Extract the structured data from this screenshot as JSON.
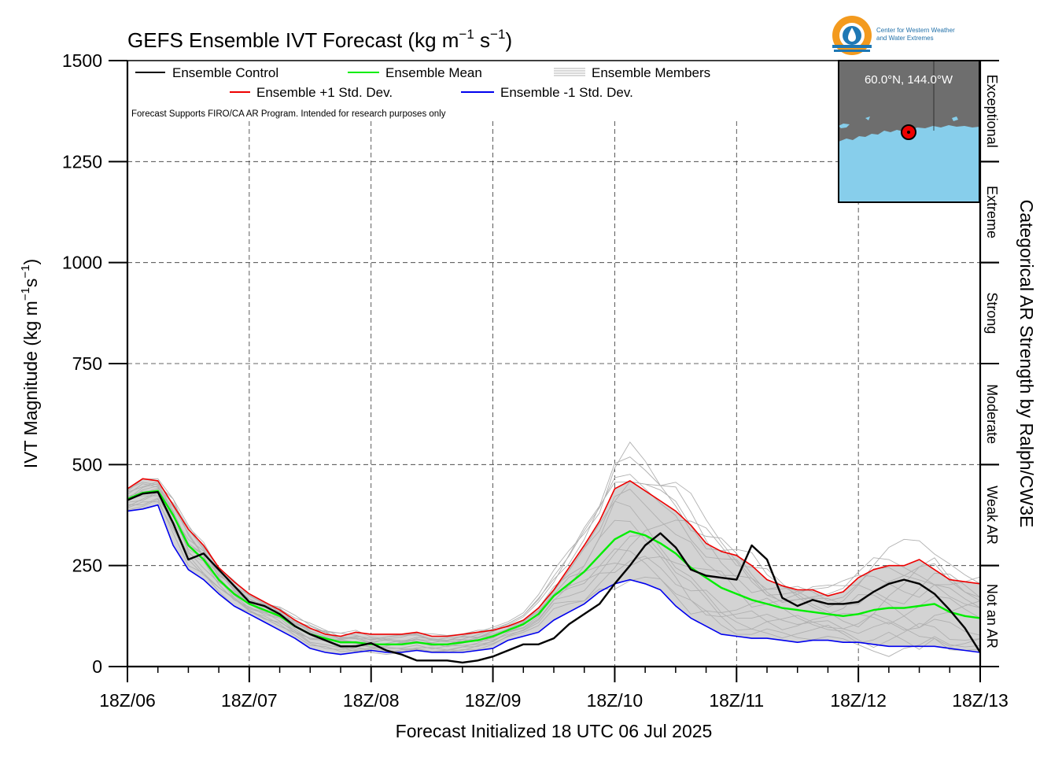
{
  "chart_data": {
    "type": "line",
    "title_main": "GEFS Ensemble IVT Forecast (kg m",
    "title_exp1": "−1",
    "title_mid": " s",
    "title_exp2": "−1",
    "title_end": ")",
    "ylabel_main": "IVT Magnitude (kg m",
    "ylabel_exp1": "−1",
    "ylabel_mid": "s",
    "ylabel_exp2": "−1",
    "ylabel_end": ")",
    "xlabel": "Forecast Initialized 18 UTC 06 Jul 2025",
    "right_label": "Categorical AR Strength by Ralph/CW3E",
    "ylim": [
      0,
      1500
    ],
    "xlim": [
      0,
      168
    ],
    "grid": true,
    "x_ticks": [
      {
        "x": 0,
        "label": "18Z/06"
      },
      {
        "x": 24,
        "label": "18Z/07"
      },
      {
        "x": 48,
        "label": "18Z/08"
      },
      {
        "x": 72,
        "label": "18Z/09"
      },
      {
        "x": 96,
        "label": "18Z/10"
      },
      {
        "x": 120,
        "label": "18Z/11"
      },
      {
        "x": 144,
        "label": "18Z/12"
      },
      {
        "x": 168,
        "label": "18Z/13"
      }
    ],
    "y_ticks": [
      {
        "y": 0,
        "label": "0"
      },
      {
        "y": 250,
        "label": "250"
      },
      {
        "y": 500,
        "label": "500"
      },
      {
        "y": 750,
        "label": "750"
      },
      {
        "y": 1000,
        "label": "1000"
      },
      {
        "y": 1250,
        "label": "1250"
      },
      {
        "y": 1500,
        "label": "1500"
      }
    ],
    "categories": [
      {
        "label": "Not an AR",
        "ymin": 0,
        "ymax": 250
      },
      {
        "label": "Weak AR",
        "ymin": 250,
        "ymax": 500
      },
      {
        "label": "Moderate",
        "ymin": 500,
        "ymax": 750
      },
      {
        "label": "Strong",
        "ymin": 750,
        "ymax": 1000
      },
      {
        "label": "Extreme",
        "ymin": 1000,
        "ymax": 1250
      },
      {
        "label": "Exceptional",
        "ymin": 1250,
        "ymax": 1500
      }
    ],
    "legend": {
      "control": "Ensemble Control",
      "mean": "Ensemble Mean",
      "members": "Ensemble Members",
      "plus_std": "Ensemble +1 Std. Dev.",
      "minus_std": "Ensemble -1 Std. Dev."
    },
    "note": "Forecast Supports FIRO/CA AR Program. Intended for research purposes only",
    "inset_location": "60.0°N, 144.0°W",
    "logo_text_1": "Center for Western Weather",
    "logo_text_2": "and Water Extremes",
    "colors": {
      "control": "#000000",
      "mean": "#00ee00",
      "plus_std": "#ee0000",
      "minus_std": "#0000ee",
      "members": "#b0b0b0",
      "spread": "#d3d3d3",
      "ocean": "#87ceeb",
      "land": "#6e6e6e"
    },
    "x": [
      0,
      3,
      6,
      9,
      12,
      15,
      18,
      21,
      24,
      27,
      30,
      33,
      36,
      39,
      42,
      45,
      48,
      51,
      54,
      57,
      60,
      63,
      66,
      69,
      72,
      75,
      78,
      81,
      84,
      87,
      90,
      93,
      96,
      99,
      102,
      105,
      108,
      111,
      114,
      117,
      120,
      123,
      126,
      129,
      132,
      135,
      138,
      141,
      144,
      147,
      150,
      153,
      156,
      159,
      162,
      165,
      168
    ],
    "series": [
      {
        "name": "Ensemble +1 Std. Dev.",
        "key": "plus_std",
        "values": [
          440,
          465,
          460,
          400,
          340,
          300,
          245,
          210,
          180,
          160,
          140,
          115,
          95,
          80,
          75,
          85,
          80,
          80,
          80,
          85,
          75,
          75,
          80,
          85,
          90,
          100,
          115,
          145,
          190,
          245,
          300,
          360,
          440,
          460,
          435,
          410,
          385,
          350,
          305,
          285,
          275,
          250,
          215,
          200,
          190,
          190,
          175,
          185,
          220,
          240,
          250,
          250,
          265,
          240,
          215,
          210,
          205
        ]
      },
      {
        "name": "Ensemble Mean",
        "key": "mean",
        "values": [
          415,
          430,
          435,
          375,
          300,
          265,
          215,
          180,
          155,
          140,
          125,
          100,
          80,
          70,
          60,
          60,
          55,
          55,
          55,
          60,
          55,
          55,
          60,
          65,
          75,
          90,
          105,
          130,
          175,
          205,
          235,
          275,
          315,
          335,
          325,
          305,
          280,
          245,
          220,
          195,
          180,
          165,
          155,
          145,
          140,
          135,
          130,
          125,
          130,
          140,
          145,
          145,
          150,
          155,
          135,
          125,
          120
        ]
      },
      {
        "name": "Ensemble -1 Std. Dev.",
        "key": "minus_std",
        "values": [
          385,
          390,
          400,
          300,
          240,
          215,
          180,
          150,
          130,
          110,
          90,
          70,
          45,
          35,
          30,
          35,
          40,
          35,
          35,
          40,
          35,
          35,
          35,
          40,
          45,
          65,
          75,
          85,
          115,
          135,
          155,
          185,
          205,
          215,
          205,
          190,
          150,
          120,
          100,
          80,
          75,
          70,
          70,
          65,
          60,
          65,
          65,
          60,
          60,
          55,
          50,
          50,
          50,
          50,
          45,
          40,
          35
        ]
      },
      {
        "name": "Ensemble Control",
        "key": "control",
        "values": [
          412,
          428,
          432,
          355,
          265,
          280,
          240,
          200,
          160,
          150,
          130,
          100,
          80,
          65,
          50,
          50,
          58,
          40,
          30,
          15,
          15,
          15,
          10,
          15,
          25,
          40,
          55,
          55,
          70,
          105,
          130,
          155,
          205,
          250,
          300,
          330,
          295,
          240,
          225,
          220,
          215,
          300,
          265,
          170,
          150,
          165,
          155,
          155,
          160,
          185,
          205,
          215,
          205,
          180,
          140,
          95,
          35
        ]
      }
    ],
    "members_spread": [
      [
        0.0,
        0.35,
        0.6,
        0.2,
        0.1,
        0.3,
        0.55,
        0.4,
        0.15,
        0.25,
        0.45,
        0.7,
        0.3,
        0.2,
        0.5,
        0.35,
        0.1,
        0.6,
        0.4,
        0.3,
        0.2,
        0.5,
        0.65,
        0.35,
        0.25,
        0.15,
        0.45,
        0.55,
        0.3,
        0.6,
        0.8,
        0.7,
        0.9,
        0.85,
        0.65,
        0.5,
        0.4,
        0.55,
        0.35,
        0.3,
        0.45,
        0.6,
        0.3,
        0.25,
        0.4,
        0.55,
        0.7,
        0.45,
        0.3,
        0.5,
        0.65,
        0.8,
        0.6,
        0.5,
        0.45,
        0.35,
        0.3
      ],
      [
        -0.3,
        -0.5,
        -0.2,
        -0.6,
        -0.4,
        -0.1,
        -0.35,
        -0.5,
        -0.3,
        -0.45,
        -0.2,
        -0.55,
        -0.4,
        -0.3,
        -0.6,
        -0.25,
        -0.35,
        -0.5,
        -0.4,
        -0.3,
        -0.55,
        -0.2,
        -0.35,
        -0.45,
        -0.6,
        -0.3,
        -0.5,
        -0.4,
        -0.25,
        -0.55,
        -0.65,
        -0.5,
        -0.7,
        -0.6,
        -0.45,
        -0.55,
        -0.65,
        -0.5,
        -0.3,
        -0.4,
        -0.6,
        -0.5,
        -0.35,
        -0.45,
        -0.55,
        -0.4,
        -0.3,
        -0.5,
        -0.6,
        -0.45,
        -0.35,
        -0.55,
        -0.5,
        -0.4,
        -0.3,
        -0.45,
        -0.5
      ],
      [
        0.6,
        0.4,
        0.75,
        0.5,
        0.8,
        0.6,
        0.3,
        0.7,
        0.5,
        0.4,
        0.65,
        0.3,
        0.55,
        0.7,
        0.4,
        0.6,
        0.75,
        0.45,
        0.3,
        0.55,
        0.7,
        0.5,
        0.35,
        0.6,
        0.8,
        0.95,
        1.1,
        1.2,
        1.3,
        1.25,
        1.4,
        1.35,
        1.3,
        1.15,
        1.0,
        0.9,
        0.8,
        0.6,
        0.5,
        0.7,
        0.85,
        0.6,
        0.5,
        0.7,
        0.9,
        0.8,
        0.6,
        0.75,
        0.95,
        1.1,
        1.0,
        0.8,
        0.9,
        1.05,
        0.9,
        0.7,
        0.6
      ],
      [
        -0.8,
        -0.6,
        -0.9,
        -0.7,
        -0.5,
        -0.8,
        -0.6,
        -0.4,
        -0.7,
        -0.9,
        -0.6,
        -0.5,
        -0.8,
        -0.7,
        -0.6,
        -0.9,
        -0.5,
        -0.7,
        -0.8,
        -0.6,
        -0.4,
        -0.7,
        -0.9,
        -0.6,
        -0.8,
        -0.9,
        -1.0,
        -0.95,
        -0.85,
        -0.9,
        -1.0,
        -0.95,
        -1.05,
        -1.0,
        -0.9,
        -0.8,
        -0.85,
        -0.7,
        -0.8,
        -0.9,
        -1.0,
        -0.95,
        -0.85,
        -0.9,
        -1.05,
        -1.1,
        -1.0,
        -0.9,
        -0.95,
        -1.1,
        -1.2,
        -1.0,
        -0.9,
        -0.85,
        -0.95,
        -0.9,
        -0.8
      ],
      [
        0.2,
        0.1,
        0.0,
        0.4,
        0.6,
        0.2,
        -0.1,
        0.1,
        0.3,
        0.6,
        0.8,
        0.5,
        0.2,
        0.0,
        0.3,
        0.5,
        0.2,
        -0.1,
        0.1,
        0.3,
        0.5,
        0.8,
        0.6,
        0.3,
        0.1,
        -0.2,
        -0.4,
        -0.2,
        0.1,
        0.3,
        0.0,
        -0.3,
        -0.5,
        -0.7,
        -0.5,
        -0.3,
        -0.2,
        0.0,
        0.2,
        0.4,
        0.1,
        -0.2,
        0.0,
        0.3,
        0.6,
        1.0,
        1.3,
        1.2,
        0.9,
        0.5,
        0.2,
        0.1,
        0.4,
        0.8,
        1.1,
        0.9,
        0.6
      ],
      [
        -0.1,
        0.2,
        0.4,
        0.1,
        -0.3,
        -0.5,
        -0.2,
        0.2,
        0.5,
        0.3,
        0.0,
        -0.3,
        -0.5,
        -0.2,
        0.1,
        -0.1,
        -0.4,
        -0.2,
        0.2,
        0.4,
        0.1,
        -0.3,
        -0.1,
        0.2,
        0.5,
        0.7,
        0.9,
        1.0,
        0.9,
        1.3,
        1.5,
        1.4,
        1.2,
        1.0,
        1.1,
        1.3,
        1.4,
        1.2,
        0.9,
        0.6,
        0.4,
        0.2,
        0.5,
        0.8,
        0.6,
        0.3,
        0.1,
        -0.2,
        -0.4,
        -0.1,
        0.3,
        0.6,
        0.9,
        1.2,
        1.0,
        0.7,
        0.5
      ],
      [
        0.9,
        0.7,
        0.5,
        0.8,
        1.0,
        0.7,
        0.9,
        1.1,
        0.8,
        0.6,
        0.9,
        1.2,
        0.9,
        0.7,
        1.0,
        1.2,
        0.9,
        0.6,
        0.8,
        1.0,
        1.3,
        1.1,
        0.9,
        1.1,
        0.7,
        0.5,
        0.3,
        0.2,
        0.0,
        -0.2,
        -0.4,
        -0.3,
        -0.2,
        -0.4,
        -0.6,
        -0.8,
        -0.9,
        -1.0,
        -0.8,
        -0.6,
        -0.7,
        -0.8,
        -0.6,
        -0.4,
        -0.2,
        -0.4,
        -0.6,
        -0.5,
        -0.3,
        -0.1,
        -0.3,
        -0.5,
        -0.7,
        -0.9,
        -1.0,
        -0.8,
        -0.6
      ],
      [
        -0.5,
        -0.8,
        -0.6,
        -0.3,
        0.0,
        0.3,
        0.6,
        0.3,
        0.0,
        -0.2,
        -0.5,
        -0.7,
        -0.4,
        -0.1,
        0.2,
        0.0,
        -0.3,
        0.1,
        0.4,
        0.1,
        -0.2,
        0.0,
        0.3,
        -0.1,
        -0.4,
        -0.6,
        -0.8,
        -0.7,
        -0.5,
        -0.8,
        -1.0,
        -0.8,
        -0.6,
        -0.3,
        0.1,
        0.4,
        0.7,
        1.0,
        1.2,
        1.0,
        0.7,
        0.9,
        1.2,
        0.9,
        0.5,
        0.2,
        0.0,
        0.3,
        0.6,
        0.4,
        0.1,
        -0.2,
        -0.5,
        -0.3,
        0.0,
        0.3,
        0.5
      ],
      [
        0.4,
        0.6,
        0.3,
        0.0,
        -0.2,
        0.1,
        0.4,
        0.6,
        0.9,
        0.7,
        0.4,
        0.2,
        0.5,
        0.8,
        1.0,
        0.7,
        0.5,
        0.8,
        1.1,
        0.9,
        0.6,
        0.4,
        0.7,
        0.9,
        1.0,
        1.2,
        1.4,
        1.6,
        1.7,
        1.5,
        1.3,
        1.2,
        1.5,
        1.8,
        1.6,
        1.3,
        1.0,
        0.8,
        1.0,
        1.2,
        1.0,
        0.7,
        0.4,
        0.2,
        0.4,
        0.6,
        0.9,
        1.1,
        1.3,
        1.4,
        1.2,
        1.0,
        0.7,
        0.5,
        0.8,
        1.0,
        1.2
      ],
      [
        -0.7,
        -0.4,
        -0.1,
        -0.4,
        -0.7,
        -0.9,
        -0.6,
        -0.3,
        -0.6,
        -0.8,
        -1.0,
        -0.7,
        -0.9,
        -1.1,
        -0.8,
        -0.5,
        -0.7,
        -0.9,
        -0.6,
        -0.8,
        -1.0,
        -0.8,
        -0.5,
        -0.7,
        -0.5,
        -0.3,
        -0.1,
        0.1,
        0.3,
        0.6,
        0.8,
        0.9,
        0.8,
        0.5,
        0.2,
        -0.1,
        -0.3,
        -0.2,
        -0.4,
        -0.6,
        -0.4,
        -0.1,
        0.2,
        0.0,
        -0.3,
        -0.5,
        -0.7,
        -0.6,
        -0.8,
        -1.0,
        -0.8,
        -0.6,
        -0.4,
        -0.6,
        -0.8,
        -0.7,
        -0.6
      ],
      [
        0.1,
        -0.2,
        -0.4,
        -0.1,
        0.3,
        0.5,
        0.2,
        -0.1,
        -0.4,
        -0.2,
        0.2,
        0.5,
        0.8,
        0.6,
        0.3,
        0.0,
        0.3,
        0.5,
        0.2,
        -0.1,
        0.2,
        0.5,
        0.3,
        0.0,
        -0.2,
        0.0,
        0.2,
        0.5,
        0.6,
        0.4,
        0.2,
        0.5,
        0.8,
        1.0,
        1.1,
        1.2,
        1.1,
        0.9,
        0.7,
        0.9,
        1.1,
        1.3,
        1.0,
        0.8,
        0.7,
        0.9,
        1.2,
        1.4,
        1.2,
        0.9,
        0.6,
        0.4,
        0.2,
        0.5,
        0.7,
        0.5,
        0.3
      ],
      [
        0.7,
        0.9,
        1.0,
        0.8,
        0.5,
        0.2,
        0.0,
        -0.3,
        -0.5,
        -0.3,
        -0.1,
        0.1,
        -0.1,
        -0.3,
        -0.5,
        -0.7,
        -0.5,
        -0.3,
        -0.5,
        -0.7,
        -0.9,
        -0.7,
        -0.5,
        -0.3,
        -0.1,
        0.2,
        0.4,
        0.3,
        0.1,
        -0.1,
        0.2,
        0.5,
        0.4,
        0.2,
        -0.1,
        -0.3,
        -0.5,
        -0.7,
        -0.9,
        -0.7,
        -0.5,
        -0.3,
        -0.6,
        -0.8,
        -0.6,
        -0.3,
        -0.1,
        0.1,
        0.0,
        -0.2,
        -0.4,
        -0.2,
        0.0,
        0.2,
        0.4,
        0.2,
        0.0
      ],
      [
        -0.2,
        0.0,
        0.2,
        0.6,
        0.9,
        1.0,
        0.8,
        0.5,
        0.3,
        0.5,
        0.7,
        0.9,
        1.1,
        0.9,
        0.6,
        0.4,
        0.6,
        0.8,
        1.0,
        0.8,
        0.5,
        0.3,
        0.1,
        0.3,
        0.6,
        0.9,
        1.1,
        1.3,
        1.1,
        0.9,
        1.1,
        1.4,
        1.6,
        1.5,
        1.4,
        1.3,
        1.5,
        1.6,
        1.4,
        1.1,
        0.8,
        0.5,
        0.3,
        0.5,
        0.7,
        0.5,
        0.3,
        0.6,
        0.9,
        1.2,
        1.5,
        1.7,
        1.5,
        1.3,
        1.4,
        1.2,
        1.0
      ],
      [
        -1.0,
        -0.9,
        -0.7,
        -0.9,
        -1.0,
        -0.8,
        -0.9,
        -1.0,
        -0.8,
        -0.6,
        -0.8,
        -1.0,
        -1.1,
        -0.9,
        -1.0,
        -0.8,
        -1.0,
        -1.1,
        -0.9,
        -0.7,
        -0.9,
        -1.0,
        -0.8,
        -1.0,
        -0.9,
        -0.8,
        -0.7,
        -0.5,
        -0.3,
        -0.1,
        -0.3,
        -0.5,
        -0.3,
        -0.1,
        0.0,
        -0.2,
        -0.4,
        -0.3,
        -0.5,
        -0.7,
        -0.9,
        -0.8,
        -1.0,
        -1.1,
        -0.9,
        -0.7,
        -0.5,
        -0.7,
        -0.9,
        -0.8,
        -0.6,
        -0.8,
        -1.0,
        -0.9,
        -1.1,
        -1.0,
        -0.9
      ]
    ]
  }
}
